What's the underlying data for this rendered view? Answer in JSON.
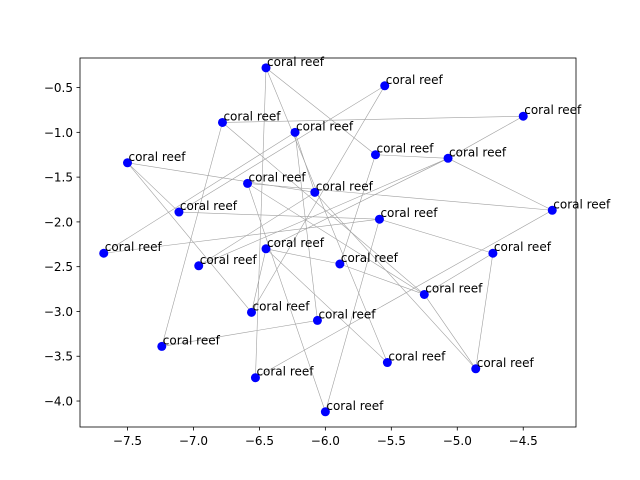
{
  "chart_data": {
    "type": "scatter",
    "title": "",
    "xlabel": "",
    "ylabel": "",
    "xlim": [
      -7.86,
      -4.1
    ],
    "ylim": [
      -4.29,
      -0.17
    ],
    "x_ticks": [
      -7.5,
      -7.0,
      -6.5,
      -6.0,
      -5.5,
      -5.0,
      -4.5
    ],
    "x_tick_labels": [
      "−7.5",
      "−7.0",
      "−6.5",
      "−6.0",
      "−5.5",
      "−5.0",
      "−4.5"
    ],
    "y_ticks": [
      -0.5,
      -1.0,
      -1.5,
      -2.0,
      -2.5,
      -3.0,
      -3.5,
      -4.0
    ],
    "y_tick_labels": [
      "−0.5",
      "−1.0",
      "−1.5",
      "−2.0",
      "−2.5",
      "−3.0",
      "−3.5",
      "−4.0"
    ],
    "grid": false,
    "legend": "none",
    "marker_color": "#0000ff",
    "line_color": "#a0a0a0",
    "points": [
      {
        "x": -6.45,
        "y": -0.28,
        "label": "coral reef"
      },
      {
        "x": -5.55,
        "y": -0.48,
        "label": "coral reef"
      },
      {
        "x": -4.5,
        "y": -0.82,
        "label": "coral reef"
      },
      {
        "x": -6.78,
        "y": -0.89,
        "label": "coral reef"
      },
      {
        "x": -6.23,
        "y": -1.0,
        "label": "coral reef"
      },
      {
        "x": -5.62,
        "y": -1.25,
        "label": "coral reef"
      },
      {
        "x": -5.07,
        "y": -1.29,
        "label": "coral reef"
      },
      {
        "x": -7.5,
        "y": -1.34,
        "label": "coral reef"
      },
      {
        "x": -6.59,
        "y": -1.57,
        "label": "coral reef"
      },
      {
        "x": -6.08,
        "y": -1.67,
        "label": "coral reef"
      },
      {
        "x": -4.28,
        "y": -1.87,
        "label": "coral reef"
      },
      {
        "x": -7.11,
        "y": -1.89,
        "label": "coral reef"
      },
      {
        "x": -5.59,
        "y": -1.97,
        "label": "coral reef"
      },
      {
        "x": -6.45,
        "y": -2.3,
        "label": "coral reef"
      },
      {
        "x": -7.68,
        "y": -2.35,
        "label": "coral reef"
      },
      {
        "x": -4.73,
        "y": -2.35,
        "label": "coral reef"
      },
      {
        "x": -5.89,
        "y": -2.47,
        "label": "coral reef"
      },
      {
        "x": -6.96,
        "y": -2.49,
        "label": "coral reef"
      },
      {
        "x": -5.25,
        "y": -2.81,
        "label": "coral reef"
      },
      {
        "x": -6.56,
        "y": -3.01,
        "label": "coral reef"
      },
      {
        "x": -6.06,
        "y": -3.1,
        "label": "coral reef"
      },
      {
        "x": -7.24,
        "y": -3.39,
        "label": "coral reef"
      },
      {
        "x": -5.53,
        "y": -3.57,
        "label": "coral reef"
      },
      {
        "x": -4.86,
        "y": -3.64,
        "label": "coral reef"
      },
      {
        "x": -6.53,
        "y": -3.74,
        "label": "coral reef"
      },
      {
        "x": -6.0,
        "y": -4.12,
        "label": "coral reef"
      }
    ],
    "connections": [
      [
        0,
        24
      ],
      [
        0,
        5
      ],
      [
        0,
        22
      ],
      [
        1,
        11
      ],
      [
        1,
        19
      ],
      [
        2,
        6
      ],
      [
        3,
        2
      ],
      [
        3,
        21
      ],
      [
        3,
        18
      ],
      [
        4,
        9
      ],
      [
        4,
        20
      ],
      [
        4,
        14
      ],
      [
        5,
        16
      ],
      [
        5,
        6
      ],
      [
        6,
        10
      ],
      [
        6,
        13
      ],
      [
        6,
        17
      ],
      [
        7,
        11
      ],
      [
        7,
        19
      ],
      [
        7,
        9
      ],
      [
        8,
        25
      ],
      [
        9,
        17
      ],
      [
        9,
        23
      ],
      [
        10,
        8
      ],
      [
        10,
        24
      ],
      [
        11,
        12
      ],
      [
        12,
        15
      ],
      [
        13,
        16
      ],
      [
        13,
        22
      ],
      [
        14,
        12
      ],
      [
        15,
        18
      ],
      [
        16,
        18
      ],
      [
        18,
        23
      ],
      [
        18,
        8
      ],
      [
        19,
        13
      ],
      [
        20,
        21
      ],
      [
        23,
        15
      ],
      [
        25,
        12
      ]
    ]
  }
}
